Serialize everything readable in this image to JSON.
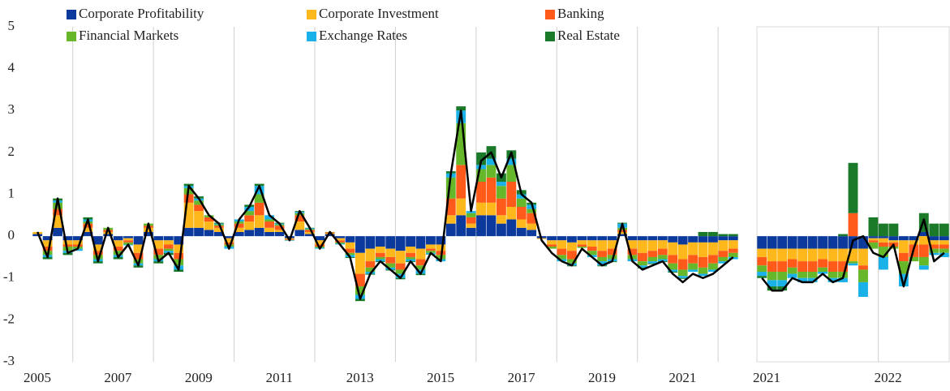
{
  "chart_data": [
    {
      "type": "bar",
      "categories": [
        "2005",
        null,
        null,
        null,
        null,
        null,
        null,
        null,
        "2007",
        null,
        null,
        null,
        null,
        null,
        null,
        null,
        "2009",
        null,
        null,
        null,
        null,
        null,
        null,
        null,
        "2011",
        null,
        null,
        null,
        null,
        null,
        null,
        null,
        "2013",
        null,
        null,
        null,
        null,
        null,
        null,
        null,
        "2015",
        null,
        null,
        null,
        null,
        null,
        null,
        null,
        "2017",
        null,
        null,
        null,
        null,
        null,
        null,
        null,
        "2019",
        null,
        null,
        null,
        null,
        null,
        null,
        null,
        "2021",
        null,
        null,
        null,
        null,
        null
      ],
      "ylim": [
        -3,
        5
      ],
      "yticks": [
        -3,
        -2,
        -1,
        0,
        1,
        2,
        3,
        4,
        5
      ],
      "series": [
        {
          "name": "Corporate Profitability",
          "color": "#0b3a9c",
          "values": [
            0.05,
            -0.1,
            0.2,
            -0.1,
            -0.1,
            0.1,
            -0.2,
            0.05,
            -0.1,
            -0.05,
            -0.2,
            0.1,
            -0.1,
            -0.1,
            -0.2,
            0.2,
            0.2,
            0.15,
            0.1,
            -0.05,
            0.1,
            0.15,
            0.2,
            0.1,
            0.1,
            -0.05,
            0.15,
            0.05,
            -0.1,
            0.05,
            -0.05,
            -0.15,
            -0.4,
            -0.3,
            -0.25,
            -0.3,
            -0.35,
            -0.25,
            -0.3,
            -0.2,
            -0.2,
            0.3,
            0.5,
            0.2,
            0.5,
            0.5,
            0.3,
            0.4,
            0.2,
            0.15,
            -0.05,
            -0.1,
            -0.1,
            -0.15,
            -0.1,
            -0.1,
            -0.1,
            -0.1,
            0.05,
            -0.1,
            -0.1,
            -0.1,
            -0.1,
            -0.15,
            -0.2,
            -0.15,
            -0.15,
            -0.15,
            -0.1,
            -0.1
          ]
        },
        {
          "name": "Corporate Investment",
          "color": "#ffb81c",
          "values": [
            0.05,
            -0.15,
            0.3,
            -0.1,
            -0.1,
            0.1,
            -0.15,
            0.05,
            -0.15,
            -0.05,
            -0.2,
            0.1,
            -0.2,
            -0.1,
            -0.2,
            0.6,
            0.4,
            0.2,
            0.1,
            -0.1,
            0.1,
            0.2,
            0.3,
            0.1,
            0.05,
            -0.02,
            0.2,
            0.05,
            -0.1,
            0.02,
            -0.05,
            -0.15,
            -0.5,
            -0.3,
            -0.15,
            -0.2,
            -0.3,
            -0.15,
            -0.25,
            -0.1,
            -0.15,
            0.2,
            0.4,
            0.1,
            0.3,
            0.3,
            0.2,
            0.3,
            0.2,
            0.15,
            -0.02,
            -0.1,
            -0.2,
            -0.2,
            -0.1,
            -0.15,
            -0.25,
            -0.2,
            0.05,
            -0.2,
            -0.3,
            -0.25,
            -0.2,
            -0.3,
            -0.35,
            -0.3,
            -0.35,
            -0.3,
            -0.25,
            -0.2
          ]
        },
        {
          "name": "Banking",
          "color": "#ff5a1a",
          "values": [
            0,
            -0.1,
            0.15,
            -0.05,
            -0.05,
            0.1,
            -0.1,
            0.05,
            -0.1,
            -0.05,
            -0.15,
            0.05,
            -0.15,
            -0.1,
            -0.15,
            0.2,
            0.15,
            0.1,
            0.05,
            -0.05,
            0.1,
            0.15,
            0.3,
            0.15,
            0.1,
            -0.02,
            0.15,
            0.05,
            -0.05,
            0.02,
            -0.05,
            -0.1,
            -0.3,
            -0.15,
            -0.1,
            -0.15,
            -0.15,
            -0.1,
            -0.15,
            -0.05,
            -0.1,
            0.4,
            0.8,
            0.15,
            0.5,
            0.6,
            0.4,
            0.6,
            0.3,
            0.25,
            0,
            -0.05,
            -0.15,
            -0.2,
            -0.05,
            -0.1,
            -0.15,
            -0.15,
            0.05,
            -0.15,
            -0.2,
            -0.15,
            -0.15,
            -0.2,
            -0.25,
            -0.2,
            -0.25,
            -0.2,
            -0.15,
            -0.1
          ]
        },
        {
          "name": "Financial Markets",
          "color": "#66b82a",
          "values": [
            0,
            -0.1,
            0.15,
            -0.1,
            -0.05,
            0.05,
            -0.1,
            0.05,
            -0.1,
            -0.05,
            -0.1,
            0.05,
            -0.1,
            -0.05,
            -0.15,
            0.15,
            0.1,
            0.05,
            0.03,
            -0.05,
            0.05,
            0.1,
            0.2,
            0.05,
            0.03,
            -0.01,
            0.05,
            0.02,
            -0.03,
            0.01,
            -0.03,
            -0.05,
            -0.2,
            -0.1,
            -0.05,
            -0.1,
            -0.1,
            -0.05,
            -0.1,
            -0.05,
            -0.1,
            0.5,
            1.0,
            0.1,
            0.3,
            0.3,
            0.3,
            0.4,
            0.2,
            0.1,
            0,
            -0.05,
            -0.1,
            -0.1,
            -0.03,
            -0.1,
            -0.1,
            -0.1,
            0.05,
            -0.1,
            -0.1,
            -0.1,
            -0.1,
            -0.15,
            -0.15,
            -0.15,
            -0.15,
            -0.15,
            -0.1,
            -0.1
          ]
        },
        {
          "name": "Exchange Rates",
          "color": "#1ab0e8",
          "values": [
            0,
            -0.05,
            0.05,
            -0.05,
            -0.05,
            0.05,
            -0.05,
            0,
            -0.05,
            -0.02,
            -0.05,
            0,
            -0.05,
            -0.05,
            -0.1,
            0.05,
            0.05,
            0,
            0.02,
            -0.05,
            0.05,
            0.1,
            0.2,
            0.1,
            0.02,
            -0.01,
            0.03,
            0.02,
            -0.02,
            0,
            -0.02,
            -0.05,
            -0.1,
            -0.05,
            -0.05,
            -0.05,
            -0.1,
            -0.05,
            -0.1,
            -0.03,
            -0.05,
            0.1,
            0.3,
            0.05,
            0.1,
            0.15,
            0.1,
            0.15,
            0.1,
            0.1,
            0,
            0,
            -0.05,
            -0.05,
            0,
            -0.05,
            -0.1,
            -0.05,
            0.1,
            -0.05,
            -0.05,
            -0.05,
            -0.05,
            -0.05,
            -0.05,
            -0.05,
            -0.05,
            -0.05,
            -0.05,
            -0.05
          ]
        },
        {
          "name": "Real Estate",
          "color": "#1a7a2a",
          "values": [
            0,
            -0.05,
            0.05,
            -0.05,
            0,
            0.05,
            -0.05,
            0,
            -0.05,
            0,
            -0.05,
            0,
            -0.05,
            -0.05,
            -0.05,
            0.05,
            0.05,
            0,
            0.02,
            0,
            0,
            0.05,
            0.05,
            0,
            0.02,
            0,
            0.02,
            0.01,
            0,
            0,
            0,
            -0.02,
            -0.05,
            -0.02,
            -0.02,
            -0.02,
            -0.03,
            -0.02,
            -0.03,
            -0.01,
            0,
            0.05,
            0.1,
            0,
            0.3,
            0.3,
            0.2,
            0.2,
            0.1,
            0.05,
            0,
            0,
            0,
            -0.02,
            0,
            0,
            -0.02,
            -0.02,
            0.02,
            0,
            -0.02,
            -0.02,
            -0.02,
            -0.02,
            -0.02,
            0,
            0.1,
            0.1,
            0.05,
            0.05
          ]
        },
        {
          "type": "line",
          "color": "#000000",
          "values": [
            0.1,
            -0.5,
            0.9,
            -0.4,
            -0.3,
            0.4,
            -0.6,
            0.2,
            -0.5,
            -0.2,
            -0.7,
            0.3,
            -0.6,
            -0.4,
            -0.8,
            1.2,
            0.9,
            0.5,
            0.3,
            -0.3,
            0.4,
            0.7,
            1.2,
            0.5,
            0.3,
            -0.1,
            0.6,
            0.2,
            -0.3,
            0.1,
            -0.2,
            -0.5,
            -1.5,
            -0.9,
            -0.6,
            -0.8,
            -1.0,
            -0.6,
            -0.9,
            -0.4,
            -0.6,
            1.5,
            3.0,
            0.6,
            1.8,
            2.0,
            1.4,
            2.0,
            1.0,
            0.8,
            -0.1,
            -0.4,
            -0.6,
            -0.7,
            -0.3,
            -0.5,
            -0.7,
            -0.6,
            0.3,
            -0.6,
            -0.8,
            -0.7,
            -0.6,
            -0.9,
            -1.1,
            -0.9,
            -1.0,
            -0.9,
            -0.7,
            -0.5
          ]
        }
      ]
    },
    {
      "type": "bar",
      "categories": [
        "2021",
        null,
        null,
        null,
        null,
        null,
        null,
        null,
        null,
        null,
        null,
        null,
        "2022",
        null,
        null,
        null,
        null,
        null,
        null
      ],
      "ylim": [
        -3,
        5
      ],
      "series": [
        {
          "color": "#0b3a9c",
          "values": [
            -0.3,
            -0.3,
            -0.3,
            -0.3,
            -0.3,
            -0.3,
            -0.3,
            -0.3,
            -0.3,
            -0.3,
            -0.3,
            -0.05,
            -0.05,
            -0.1,
            -0.1,
            -0.1,
            0.1,
            -0.1,
            -0.1
          ]
        },
        {
          "color": "#ffb81c",
          "values": [
            -0.2,
            -0.3,
            -0.3,
            -0.25,
            -0.3,
            -0.3,
            -0.25,
            -0.3,
            -0.3,
            -0.3,
            -0.4,
            -0.05,
            -0.1,
            -0.05,
            -0.3,
            -0.1,
            -0.2,
            -0.1,
            -0.1
          ]
        },
        {
          "color": "#ff5a1a",
          "values": [
            -0.2,
            -0.25,
            -0.25,
            -0.2,
            -0.25,
            -0.25,
            -0.2,
            -0.25,
            -0.25,
            0.55,
            -0.1,
            -0.05,
            -0.1,
            -0.1,
            -0.2,
            -0.3,
            -0.3,
            -0.1,
            -0.1
          ]
        },
        {
          "color": "#66b82a",
          "values": [
            -0.15,
            -0.2,
            -0.2,
            -0.15,
            -0.15,
            -0.15,
            -0.1,
            -0.15,
            -0.15,
            -0.05,
            -0.3,
            -0.15,
            -0.25,
            -0.05,
            -0.3,
            -0.1,
            -0.2,
            -0.1,
            -0.1
          ]
        },
        {
          "color": "#1ab0e8",
          "values": [
            -0.1,
            -0.15,
            -0.15,
            -0.1,
            -0.1,
            -0.1,
            -0.05,
            -0.1,
            -0.1,
            -0.05,
            -0.35,
            0,
            -0.3,
            0,
            -0.3,
            0,
            -0.1,
            -0.05,
            -0.1
          ]
        },
        {
          "color": "#1a7a2a",
          "values": [
            -0.05,
            -0.1,
            -0.1,
            0,
            0,
            0,
            0,
            0,
            0.05,
            1.2,
            0,
            0.45,
            0.3,
            0.3,
            0,
            0,
            0.45,
            0.3,
            0.3
          ]
        },
        {
          "type": "line",
          "color": "#000000",
          "values": [
            -1.0,
            -1.3,
            -1.3,
            -1.0,
            -1.1,
            -1.1,
            -0.9,
            -1.1,
            -1.0,
            -0.1,
            0.0,
            -0.4,
            -0.5,
            -0.2,
            -1.2,
            -0.3,
            0.4,
            -0.6,
            -0.4
          ]
        }
      ]
    }
  ]
}
